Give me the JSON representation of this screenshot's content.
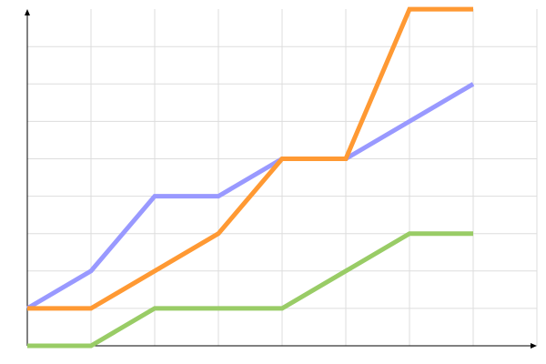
{
  "chart_data": {
    "type": "line",
    "title": "",
    "xlabel": "",
    "ylabel": "",
    "x": [
      0,
      1,
      2,
      3,
      4,
      5,
      6,
      7
    ],
    "xlim": [
      0,
      8
    ],
    "ylim": [
      0,
      9
    ],
    "grid": true,
    "legend": "none",
    "series": [
      {
        "color": "#9999ff",
        "values": [
          1,
          2,
          4,
          4,
          5,
          5,
          6,
          7
        ]
      },
      {
        "color": "#ff9933",
        "values": [
          1,
          1,
          2,
          3,
          5,
          5,
          9,
          9
        ]
      },
      {
        "color": "#99cc66",
        "values": [
          0,
          0,
          1,
          1,
          1,
          2,
          3,
          3
        ]
      }
    ]
  }
}
